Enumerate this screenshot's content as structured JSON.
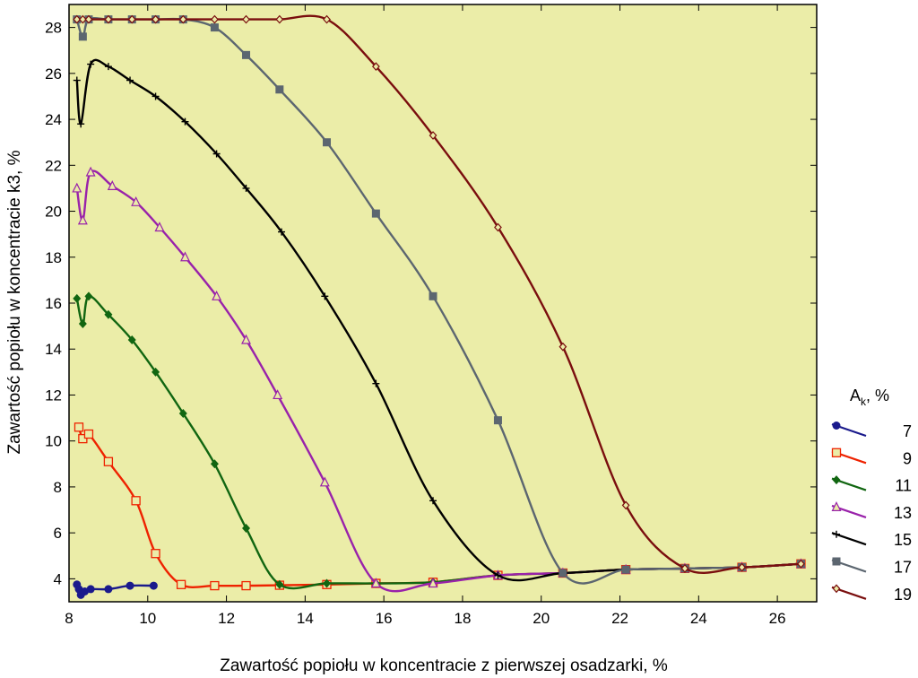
{
  "chart_data": {
    "type": "line",
    "title": "",
    "xlabel": "Zawartość popiołu w koncentracie z pierwszej osadzarki,     %",
    "ylabel": "Zawartość popiołu w koncentracie k3,  %",
    "xlim": [
      8,
      27
    ],
    "ylim": [
      3,
      29
    ],
    "xticks": [
      8,
      10,
      12,
      14,
      16,
      18,
      20,
      22,
      24,
      26
    ],
    "yticks": [
      4,
      6,
      8,
      10,
      12,
      14,
      16,
      18,
      20,
      22,
      24,
      26,
      28
    ],
    "grid": false,
    "plot_background": "#ebeda8",
    "legend": {
      "placement": "right",
      "title_main": "A",
      "title_sub": "k",
      "title_suffix": ",  %"
    },
    "series": [
      {
        "name": "7",
        "color": "#1a1a8c",
        "marker": "circle",
        "x": [
          8.2,
          8.25,
          8.3,
          8.4,
          8.55,
          9.0,
          9.55,
          10.15
        ],
        "y": [
          3.75,
          3.55,
          3.3,
          3.45,
          3.55,
          3.55,
          3.7,
          3.7
        ]
      },
      {
        "name": "9",
        "color": "#ee2200",
        "marker": "square-open",
        "x": [
          8.25,
          8.35,
          8.5,
          9.0,
          9.7,
          10.2,
          10.85,
          11.7,
          12.5,
          13.35,
          14.55,
          15.8,
          17.25,
          18.9,
          20.55,
          22.15,
          23.65,
          25.1,
          26.6
        ],
        "y": [
          10.6,
          10.1,
          10.3,
          9.1,
          7.4,
          5.1,
          3.75,
          3.7,
          3.7,
          3.72,
          3.75,
          3.8,
          3.85,
          4.15,
          4.25,
          4.4,
          4.45,
          4.5,
          4.65
        ]
      },
      {
        "name": "11",
        "color": "#116611",
        "marker": "diamond",
        "x": [
          8.2,
          8.35,
          8.5,
          9.0,
          9.6,
          10.2,
          10.9,
          11.7,
          12.5,
          13.35,
          14.55,
          15.8,
          17.25,
          18.9,
          20.55,
          22.15,
          23.65,
          25.1,
          26.6
        ],
        "y": [
          16.2,
          15.1,
          16.3,
          15.5,
          14.4,
          13.0,
          11.2,
          9.0,
          6.2,
          3.75,
          3.8,
          3.8,
          3.85,
          4.15,
          4.25,
          4.4,
          4.45,
          4.5,
          4.65
        ]
      },
      {
        "name": "13",
        "color": "#9922aa",
        "marker": "triangle-open",
        "x": [
          8.2,
          8.35,
          8.55,
          9.1,
          9.7,
          10.3,
          10.95,
          11.75,
          12.5,
          13.3,
          14.5,
          15.8,
          17.25,
          18.9,
          20.55,
          22.15,
          23.65,
          25.1,
          26.6
        ],
        "y": [
          21.0,
          19.6,
          21.7,
          21.1,
          20.4,
          19.3,
          18.0,
          16.3,
          14.4,
          12.0,
          8.2,
          3.8,
          3.8,
          4.15,
          4.25,
          4.4,
          4.45,
          4.5,
          4.65
        ]
      },
      {
        "name": "15",
        "color": "#000000",
        "marker": "plus",
        "x": [
          8.2,
          8.3,
          8.55,
          9.0,
          9.55,
          10.2,
          10.95,
          11.75,
          12.5,
          13.4,
          14.5,
          15.8,
          17.25,
          18.9,
          20.55,
          22.15,
          23.65,
          25.1,
          26.6
        ],
        "y": [
          25.7,
          23.8,
          26.4,
          26.3,
          25.7,
          25.0,
          23.9,
          22.5,
          21.0,
          19.1,
          16.3,
          12.5,
          7.4,
          4.15,
          4.25,
          4.4,
          4.45,
          4.5,
          4.65
        ]
      },
      {
        "name": "17",
        "color": "#5c6670",
        "marker": "square",
        "x": [
          8.2,
          8.35,
          8.5,
          9.0,
          9.6,
          10.2,
          10.9,
          11.7,
          12.5,
          13.35,
          14.55,
          15.8,
          17.25,
          18.9,
          20.55,
          22.15,
          23.65,
          25.1,
          26.6
        ],
        "y": [
          28.35,
          27.6,
          28.35,
          28.35,
          28.35,
          28.35,
          28.35,
          28.0,
          26.8,
          25.3,
          23.0,
          19.9,
          16.3,
          10.9,
          4.25,
          4.4,
          4.45,
          4.5,
          4.65
        ]
      },
      {
        "name": "19",
        "color": "#7a0e0e",
        "marker": "diamond-open",
        "x": [
          8.2,
          8.35,
          8.5,
          9.0,
          9.6,
          10.2,
          10.9,
          11.7,
          12.5,
          13.35,
          14.55,
          15.8,
          17.25,
          18.9,
          20.55,
          22.15,
          23.65,
          25.1,
          26.6
        ],
        "y": [
          28.35,
          28.35,
          28.35,
          28.35,
          28.35,
          28.35,
          28.35,
          28.35,
          28.35,
          28.35,
          28.35,
          26.3,
          23.3,
          19.3,
          14.1,
          7.2,
          4.45,
          4.5,
          4.65
        ]
      }
    ]
  }
}
